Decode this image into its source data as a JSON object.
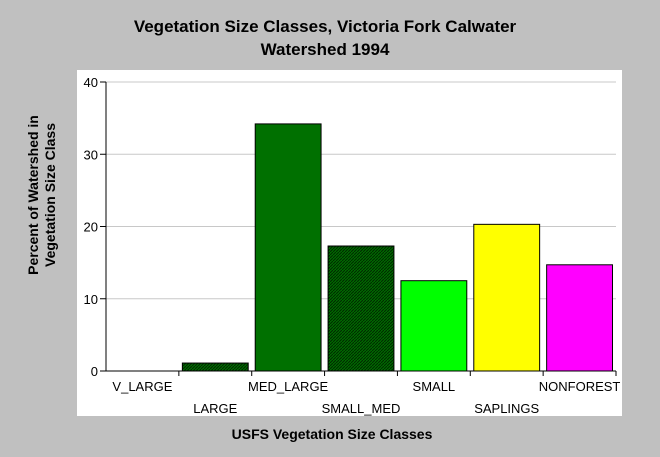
{
  "chart_data": {
    "type": "bar",
    "title": "Vegetation Size Classes, Victoria Fork Calwater Watershed 1994",
    "title_lines": [
      "Vegetation Size Classes, Victoria Fork Calwater",
      "Watershed 1994"
    ],
    "xlabel": "USFS Vegetation Size Classes",
    "ylabel": "Percent of Watershed in Vegetation Size Class",
    "ylabel_lines": [
      "Percent of Watershed in",
      "Vegetation Size Class"
    ],
    "categories": [
      "V_LARGE",
      "LARGE",
      "MED_LARGE",
      "SMALL_MED",
      "SMALL",
      "SAPLINGS",
      "NONFOREST"
    ],
    "values": [
      0,
      1.1,
      34.2,
      17.3,
      12.5,
      20.3,
      14.7
    ],
    "bar_colors": [
      "#004000",
      "#004000",
      "#007000",
      "#006000",
      "#00ff00",
      "#ffff00",
      "#ff00ff"
    ],
    "bar_hatched": [
      true,
      true,
      false,
      true,
      false,
      false,
      false
    ],
    "ylim": [
      0,
      40
    ],
    "yticks": [
      0,
      10,
      20,
      30,
      40
    ],
    "grid": true,
    "legend": "none",
    "plot_background": "#ffffff",
    "page_background": "#c0c0c0"
  }
}
